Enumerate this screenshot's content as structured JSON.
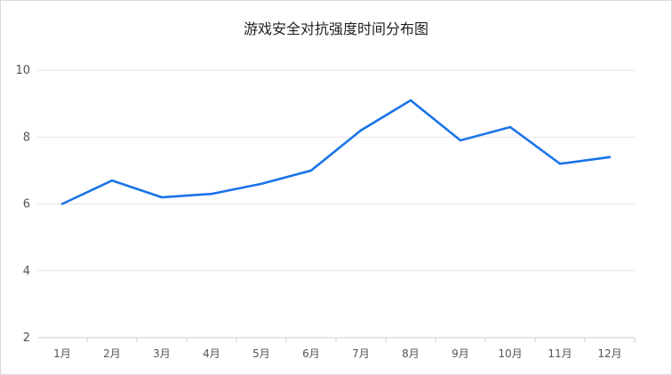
{
  "chart_data": {
    "type": "line",
    "title": "游戏安全对抗强度时间分布图",
    "xlabel": "",
    "ylabel": "",
    "categories": [
      "1月",
      "2月",
      "3月",
      "4月",
      "5月",
      "6月",
      "7月",
      "8月",
      "9月",
      "10月",
      "11月",
      "12月"
    ],
    "series": [
      {
        "values": [
          6.0,
          6.7,
          6.2,
          6.3,
          6.6,
          7.0,
          8.2,
          9.1,
          7.9,
          8.3,
          7.2,
          7.4
        ]
      }
    ],
    "ylim": [
      2,
      10
    ],
    "yticks": [
      2,
      4,
      6,
      8,
      10
    ],
    "grid": true,
    "legend": "none",
    "colors": {
      "line": "#1a73e8",
      "grid": "#e3e3e3",
      "axis": "#cccccc"
    }
  }
}
